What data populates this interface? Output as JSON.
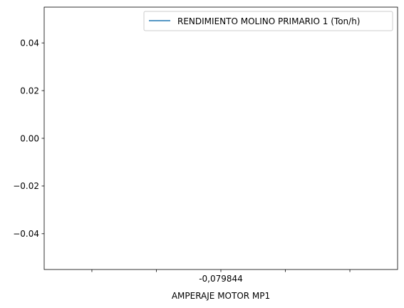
{
  "chart_data": {
    "type": "line",
    "title": "",
    "xlabel": "AMPERAJE MOTOR MP1",
    "ylabel": "",
    "x_tick_labels": [
      "",
      "",
      "-0,079844",
      "",
      ""
    ],
    "y_ticks": [
      -0.04,
      -0.02,
      0.0,
      0.02,
      0.04
    ],
    "y_tick_labels": [
      "−0.04",
      "−0.02",
      "0.00",
      "0.02",
      "0.04"
    ],
    "ylim": [
      -0.055,
      0.055
    ],
    "grid": false,
    "legend_position": "top-right",
    "series": [
      {
        "name": "RENDIMIENTO MOLINO PRIMARIO 1 (Ton/h)",
        "color": "#1f77b4",
        "x": [],
        "y": []
      }
    ]
  }
}
